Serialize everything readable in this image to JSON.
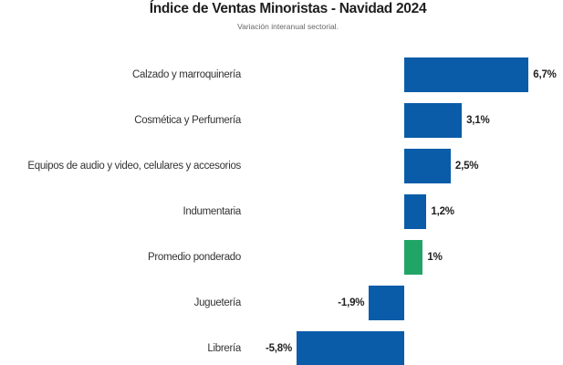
{
  "header": {
    "title": "Índice de Ventas Minoristas - Navidad 2024",
    "subtitle": "Variación interanual sectorial."
  },
  "chart_data": {
    "type": "bar",
    "orientation": "horizontal",
    "title": "Índice de Ventas Minoristas - Navidad 2024",
    "subtitle": "Variación interanual sectorial.",
    "categories": [
      "Calzado y marroquinería",
      "Cosmética y Perfumería",
      "Equipos de audio y video, celulares y accesorios",
      "Indumentaria",
      "Promedio ponderado",
      "Juguetería",
      "Librería"
    ],
    "values": [
      6.7,
      3.1,
      2.5,
      1.2,
      1.0,
      -1.9,
      -5.8
    ],
    "value_labels": [
      "6,7%",
      "3,1%",
      "2,5%",
      "1,2%",
      "1%",
      "-1,9%",
      "-5,8%"
    ],
    "bar_colors": [
      "#0a5ca8",
      "#0a5ca8",
      "#0a5ca8",
      "#0a5ca8",
      "#21a567",
      "#0a5ca8",
      "#0a5ca8"
    ],
    "unit": "%",
    "xlim": [
      -5.8,
      6.7
    ],
    "grid": false,
    "legend": "none",
    "accent_blue": "#0a5ca8",
    "accent_green": "#21a567"
  }
}
